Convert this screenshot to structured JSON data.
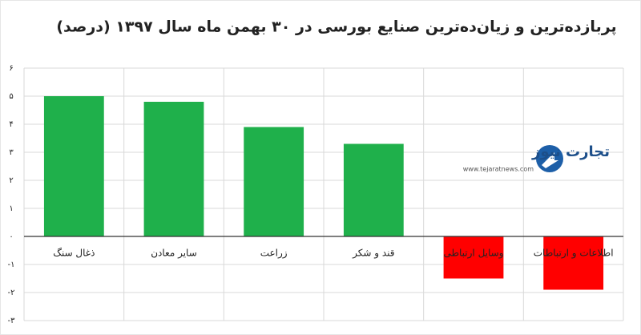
{
  "chart_data": {
    "type": "bar",
    "title": "پربازده‌ترین و زیان‌ده‌ترین صنایع بورسی در ۳۰ بهمن ماه سال ۱۳۹۷ (درصد)",
    "categories": [
      "ذغال سنگ",
      "سایر معادن",
      "زراعت",
      "قند و شکر",
      "وسایل ارتباطی",
      "اطلاعات و ارتباطات"
    ],
    "values": [
      5.0,
      4.8,
      3.9,
      3.3,
      -1.5,
      -1.9
    ],
    "colors": [
      "#1fb04b",
      "#1fb04b",
      "#1fb04b",
      "#1fb04b",
      "#ff0000",
      "#ff0000"
    ],
    "ylim": [
      -3,
      6
    ],
    "yticks": [
      {
        "value": -3,
        "label": "-۳"
      },
      {
        "value": -2,
        "label": "-۲"
      },
      {
        "value": -1,
        "label": "-۱"
      },
      {
        "value": 0,
        "label": "۰"
      },
      {
        "value": 1,
        "label": "۱"
      },
      {
        "value": 2,
        "label": "۲"
      },
      {
        "value": 3,
        "label": "۳"
      },
      {
        "value": 4,
        "label": "۴"
      },
      {
        "value": 5,
        "label": "۵"
      },
      {
        "value": 6,
        "label": "۶"
      }
    ],
    "grid": true
  },
  "watermark": {
    "name": "تجارت نیوز",
    "url": "www.tejaratnews.com"
  }
}
